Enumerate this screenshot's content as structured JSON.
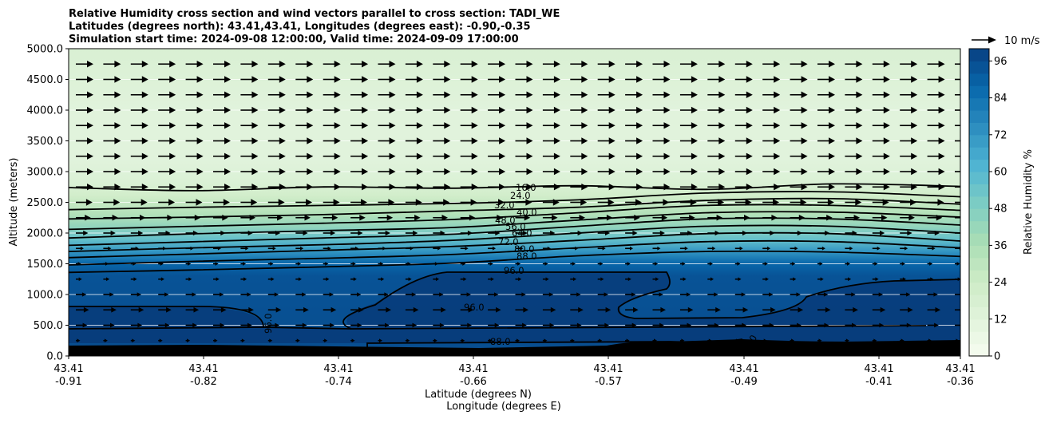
{
  "chart_data": {
    "type": "heatmap",
    "title": "Relative Humidity cross section and wind vectors parallel to cross section: TADI_WE",
    "subtitle_lines": [
      "Latitudes (degrees north): 43.41,43.41, Longitudes (degrees east): -0.90,-0.35",
      "Simulation start time: 2024-09-08 12:00:00, Valid time: 2024-09-09 17:00:00"
    ],
    "ylabel": "Altitude (meters)",
    "xlabel_1": "Latitude (degrees N)",
    "xlabel_2": "Longitude (degrees E)",
    "ylim": [
      0,
      5000
    ],
    "yticks": [
      "0.0",
      "500.0",
      "1000.0",
      "1500.0",
      "2000.0",
      "2500.0",
      "3000.0",
      "3500.0",
      "4000.0",
      "4500.0",
      "5000.0"
    ],
    "xtick_lat": [
      "43.41",
      "43.41",
      "43.41",
      "43.41",
      "43.41",
      "43.41",
      "43.41",
      "43.41"
    ],
    "xtick_lon": [
      "-0.91",
      "-0.82",
      "-0.74",
      "-0.66",
      "-0.57",
      "-0.49",
      "-0.41",
      "-0.36"
    ],
    "colorbar_label": "Relative Humidity %",
    "colorbar_ticks": [
      "0",
      "12",
      "24",
      "36",
      "48",
      "60",
      "72",
      "84",
      "96"
    ],
    "colorbar_range": [
      0,
      100
    ],
    "vector_key": "10 m/s",
    "contour_levels": [
      "16.0",
      "24.0",
      "32.0",
      "40.0",
      "48.0",
      "56.0",
      "64.0",
      "72.0",
      "80.0",
      "88.0",
      "96.0"
    ],
    "extra_contour_labels": [
      "96.0",
      "96.0",
      "88.0",
      "96.0",
      "0"
    ],
    "contour_heights_m": {
      "16": [
        2740,
        2690,
        2750,
        2730,
        2770,
        2710,
        2800,
        2760
      ],
      "24": [
        2380,
        2420,
        2450,
        2480,
        2540,
        2650,
        2670,
        2590
      ],
      "32": [
        2230,
        2260,
        2300,
        2360,
        2420,
        2530,
        2560,
        2470
      ],
      "40": [
        2060,
        2110,
        2160,
        2220,
        2330,
        2450,
        2450,
        2370
      ],
      "48": [
        1920,
        1990,
        2040,
        2090,
        2210,
        2330,
        2340,
        2260
      ],
      "56": [
        1800,
        1860,
        1920,
        1980,
        2110,
        2230,
        2230,
        2130
      ],
      "64": [
        1700,
        1760,
        1810,
        1880,
        2000,
        2110,
        2110,
        2000
      ],
      "72": [
        1600,
        1660,
        1720,
        1780,
        1880,
        1990,
        1990,
        1870
      ],
      "80": [
        1480,
        1540,
        1590,
        1650,
        1760,
        1860,
        1860,
        1760
      ],
      "88": [
        1360,
        1400,
        1450,
        1510,
        1630,
        1700,
        1690,
        1620
      ]
    },
    "vector_levels_m": [
      250,
      500,
      750,
      1000,
      1250,
      1500,
      1750,
      2000,
      2250,
      2500,
      2750,
      3000,
      3250,
      3500,
      3750,
      4000,
      4250,
      4500,
      4750
    ],
    "vector_speeds_ms": [
      2.5,
      6.5,
      7.5,
      6,
      3.5,
      3,
      4.5,
      7,
      8.5,
      9.5,
      10,
      10,
      10,
      10,
      10,
      10,
      10,
      10,
      10
    ],
    "grid": true
  }
}
